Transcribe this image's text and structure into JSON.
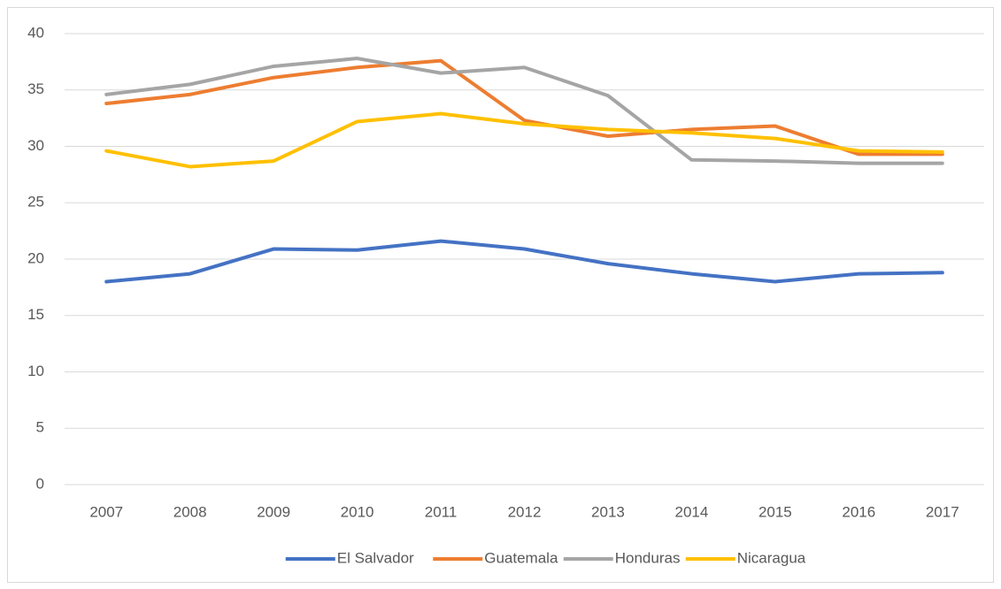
{
  "chart_data": {
    "type": "line",
    "categories": [
      "2007",
      "2008",
      "2009",
      "2010",
      "2011",
      "2012",
      "2013",
      "2014",
      "2015",
      "2016",
      "2017"
    ],
    "series": [
      {
        "name": "El Salvador",
        "color": "#4472c4",
        "values": [
          18.0,
          18.7,
          20.9,
          20.8,
          21.6,
          20.9,
          19.6,
          18.7,
          18.0,
          18.7,
          18.8
        ]
      },
      {
        "name": "Guatemala",
        "color": "#ed7d31",
        "values": [
          33.8,
          34.6,
          36.1,
          37.0,
          37.6,
          32.3,
          30.9,
          31.5,
          31.8,
          29.3,
          29.3
        ]
      },
      {
        "name": "Honduras",
        "color": "#a5a5a5",
        "values": [
          34.6,
          35.5,
          37.1,
          37.8,
          36.5,
          37.0,
          34.5,
          28.8,
          28.7,
          28.5,
          28.5
        ]
      },
      {
        "name": "Nicaragua",
        "color": "#ffc000",
        "values": [
          29.6,
          28.2,
          28.7,
          32.2,
          32.9,
          32.0,
          31.5,
          31.2,
          30.7,
          29.6,
          29.5
        ]
      }
    ],
    "ylim": [
      0,
      40
    ],
    "yticks": [
      0,
      5,
      10,
      15,
      20,
      25,
      30,
      35,
      40
    ],
    "grid": true,
    "legend": "bottom"
  }
}
